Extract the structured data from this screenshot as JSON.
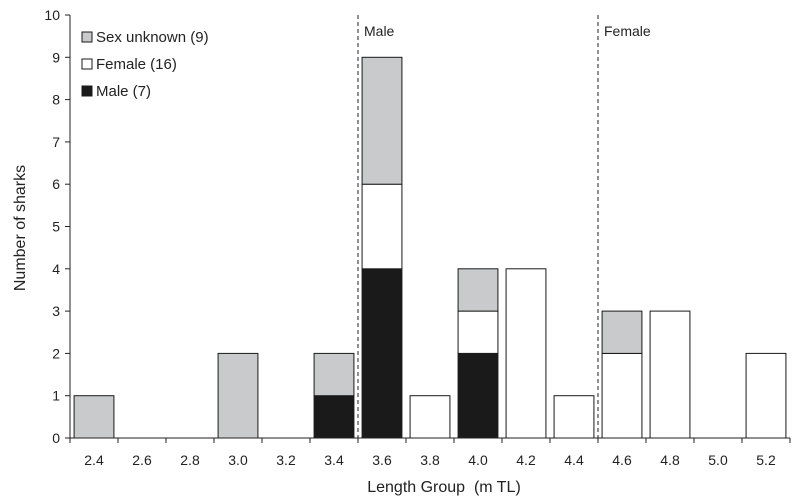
{
  "chart_data": {
    "type": "bar",
    "stacked": true,
    "xlabel": "Length Group  (m TL)",
    "ylabel": "Number of sharks",
    "ylim": [
      0,
      10
    ],
    "yticks": [
      0,
      1,
      2,
      3,
      4,
      5,
      6,
      7,
      8,
      9,
      10
    ],
    "categories": [
      "2.4",
      "2.6",
      "2.8",
      "3.0",
      "3.2",
      "3.4",
      "3.6",
      "3.8",
      "4.0",
      "4.2",
      "4.4",
      "4.6",
      "4.8",
      "5.0",
      "5.2"
    ],
    "series": [
      {
        "name": "Male (7)",
        "color": "#1a1a1a",
        "values": [
          0,
          0,
          0,
          0,
          0,
          1,
          4,
          0,
          2,
          0,
          0,
          0,
          0,
          0,
          0
        ]
      },
      {
        "name": "Female (16)",
        "color": "#ffffff",
        "values": [
          0,
          0,
          0,
          0,
          0,
          0,
          2,
          1,
          1,
          4,
          1,
          2,
          3,
          0,
          2
        ]
      },
      {
        "name": "Sex unknown (9)",
        "color": "#c8cacc",
        "values": [
          1,
          0,
          0,
          2,
          0,
          1,
          3,
          0,
          1,
          0,
          0,
          1,
          0,
          0,
          0
        ]
      }
    ],
    "legend_order": [
      "Sex unknown (9)",
      "Female (16)",
      "Male (7)"
    ],
    "legend_position": "top-left",
    "reference_lines": [
      {
        "label": "Male",
        "x": 3.5
      },
      {
        "label": "Female",
        "x": 4.5
      }
    ],
    "grid": false
  }
}
